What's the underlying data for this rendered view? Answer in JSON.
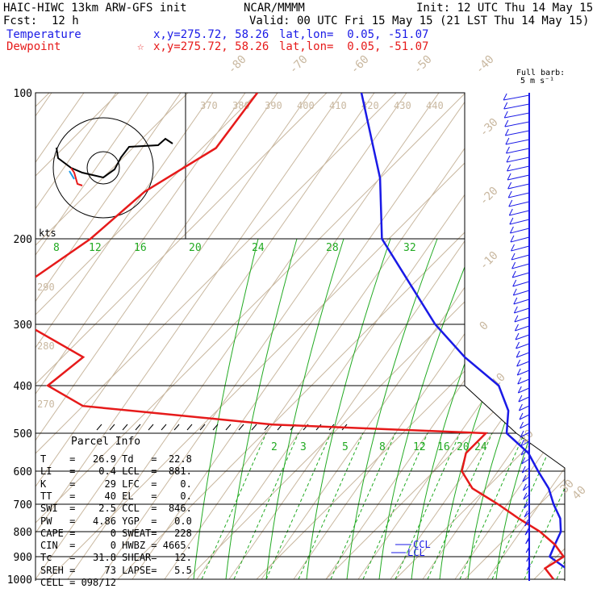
{
  "header": {
    "model": "HAIC-HIWC 13km ARW-GFS init",
    "org": "NCAR/MMMM",
    "init": "Init: 12 UTC Thu 14 May 15",
    "fcst_label": "Fcst:",
    "fcst_value": "12 h",
    "valid": "Valid: 00 UTC Fri 15 May 15 (21 LST Thu 14 May 15)",
    "temp_label": "Temperature",
    "dew_label": "Dewpoint",
    "temp_xy": "x,y=275.72, 58.26",
    "dew_xy": "x,y=275.72, 58.26",
    "star": "☆",
    "temp_latlon": "lat,lon=  0.05, -51.07",
    "dew_latlon": "lat,lon=  0.05, -51.07",
    "full_barb": "Full barb:",
    "barb_unit": "5 m s⁻¹"
  },
  "colors": {
    "temperature": "#1a1ae6",
    "dewpoint": "#e61a1a",
    "mixing": "#22aa22",
    "isotherm": "#c9b8a0",
    "grid": "#000000"
  },
  "chart_data": {
    "type": "line",
    "pressure_levels": [
      100,
      200,
      300,
      400,
      500,
      600,
      700,
      800,
      900,
      1000
    ],
    "pressure_labels": [
      "100",
      "200",
      "300",
      "400",
      "500",
      "600",
      "700",
      "800",
      "900",
      "1000"
    ],
    "isotherm_labels": [
      "-80",
      "-70",
      "-60",
      "-50",
      "-40",
      "-30",
      "-20",
      "-10",
      "0",
      "10",
      "20",
      "30",
      "40"
    ],
    "theta_labels": [
      "370",
      "380",
      "390",
      "400",
      "410",
      "420",
      "430",
      "440"
    ],
    "theta_side_labels": [
      "290",
      "280",
      "270"
    ],
    "mixing_upper": [
      "8",
      "12",
      "16",
      "20",
      "24",
      "28",
      "32"
    ],
    "mixing_lower": [
      "2",
      "3",
      "5",
      "8",
      "12",
      "16",
      "20",
      "24"
    ],
    "kts_label": "kts",
    "ccl_label": "CCL",
    "lcl_label": "LCL",
    "series": [
      {
        "name": "Temperature",
        "color": "#1a1ae6",
        "points": [
          [
            100,
            -75
          ],
          [
            150,
            -60
          ],
          [
            200,
            -51
          ],
          [
            250,
            -40
          ],
          [
            300,
            -31
          ],
          [
            350,
            -22
          ],
          [
            400,
            -13
          ],
          [
            450,
            -8
          ],
          [
            500,
            -5
          ],
          [
            550,
            1
          ],
          [
            600,
            5
          ],
          [
            650,
            9
          ],
          [
            700,
            12
          ],
          [
            750,
            15
          ],
          [
            800,
            17
          ],
          [
            850,
            18
          ],
          [
            900,
            19
          ],
          [
            950,
            23
          ],
          [
            1000,
            26.9
          ]
        ]
      },
      {
        "name": "Dewpoint",
        "color": "#e61a1a",
        "points": [
          [
            100,
            -90
          ],
          [
            130,
            -88
          ],
          [
            160,
            -92
          ],
          [
            200,
            -93
          ],
          [
            250,
            -96
          ],
          [
            280,
            -99
          ],
          [
            300,
            -90
          ],
          [
            350,
            -77
          ],
          [
            400,
            -78
          ],
          [
            440,
            -70
          ],
          [
            480,
            -40
          ],
          [
            500,
            -8
          ],
          [
            550,
            -8
          ],
          [
            600,
            -6
          ],
          [
            650,
            -2
          ],
          [
            700,
            4
          ],
          [
            750,
            9
          ],
          [
            800,
            14
          ],
          [
            850,
            18
          ],
          [
            900,
            21
          ],
          [
            950,
            20
          ],
          [
            1000,
            22.8
          ]
        ]
      }
    ]
  },
  "parcel": {
    "title": "Parcel Info",
    "rows": [
      {
        "k1": "T",
        "v1": "26.9",
        "k2": "Td",
        "v2": "22.8"
      },
      {
        "k1": "LI",
        "v1": "0.4",
        "k2": "LCL",
        "v2": "881."
      },
      {
        "k1": "K",
        "v1": "29",
        "k2": "LFC",
        "v2": "0."
      },
      {
        "k1": "TT",
        "v1": "40",
        "k2": "EL",
        "v2": "0."
      },
      {
        "k1": "SWI",
        "v1": "2.5",
        "k2": "CCL",
        "v2": "846."
      },
      {
        "k1": "PW",
        "v1": "4.86",
        "k2": "YGP",
        "v2": "0.0"
      },
      {
        "k1": "CAPE",
        "v1": "0",
        "k2": "SWEAT",
        "v2": "228"
      },
      {
        "k1": "CIN",
        "v1": "0",
        "k2": "HWBZ",
        "v2": "4665."
      },
      {
        "k1": "Tc",
        "v1": "31.8",
        "k2": "SHEAR",
        "v2": "12."
      },
      {
        "k1": "SREH",
        "v1": "73",
        "k2": "LAPSE",
        "v2": "5.5"
      },
      {
        "k1": "CELL",
        "v1": "098/12",
        "k2": "",
        "v2": ""
      }
    ]
  }
}
